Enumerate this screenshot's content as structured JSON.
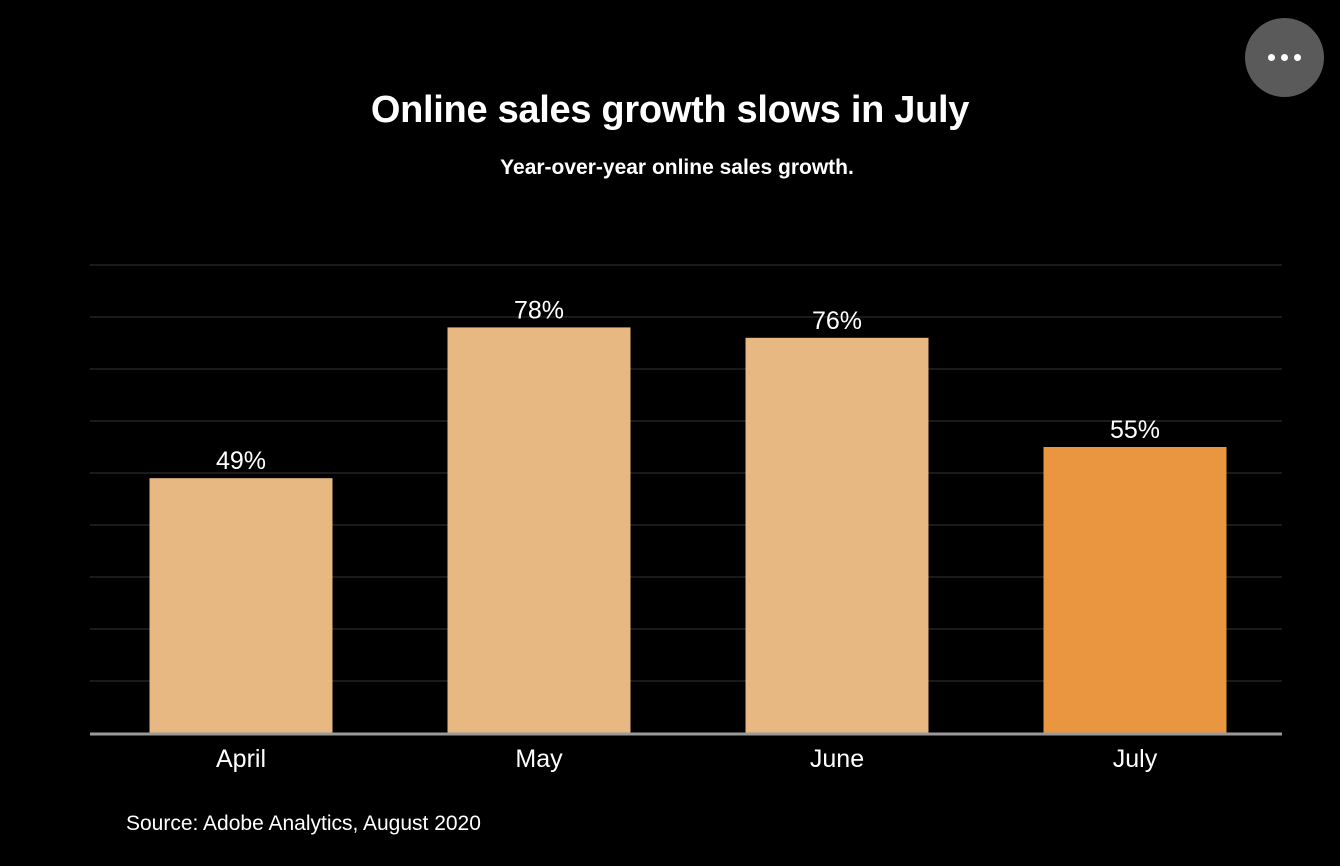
{
  "menu": {
    "icon": "more-horizontal-icon"
  },
  "colors": {
    "background": "#000000",
    "bar": "#e8b882",
    "highlight_bar": "#ea9640",
    "grid": "#2b2b2b",
    "axis": "#9a9a9a",
    "text": "#ffffff",
    "menu_button": "#5a5a5a"
  },
  "chart_data": {
    "type": "bar",
    "title": "Online sales growth slows in July",
    "subtitle": "Year-over-year online sales growth.",
    "categories": [
      "April",
      "May",
      "June",
      "July"
    ],
    "values": [
      49,
      78,
      76,
      55
    ],
    "data_labels": [
      "49%",
      "78%",
      "76%",
      "55%"
    ],
    "highlight": "July",
    "ylim": [
      0,
      90
    ],
    "grid": true,
    "y_tick_labels_shown": false,
    "source": "Source: Adobe Analytics, August 2020"
  }
}
